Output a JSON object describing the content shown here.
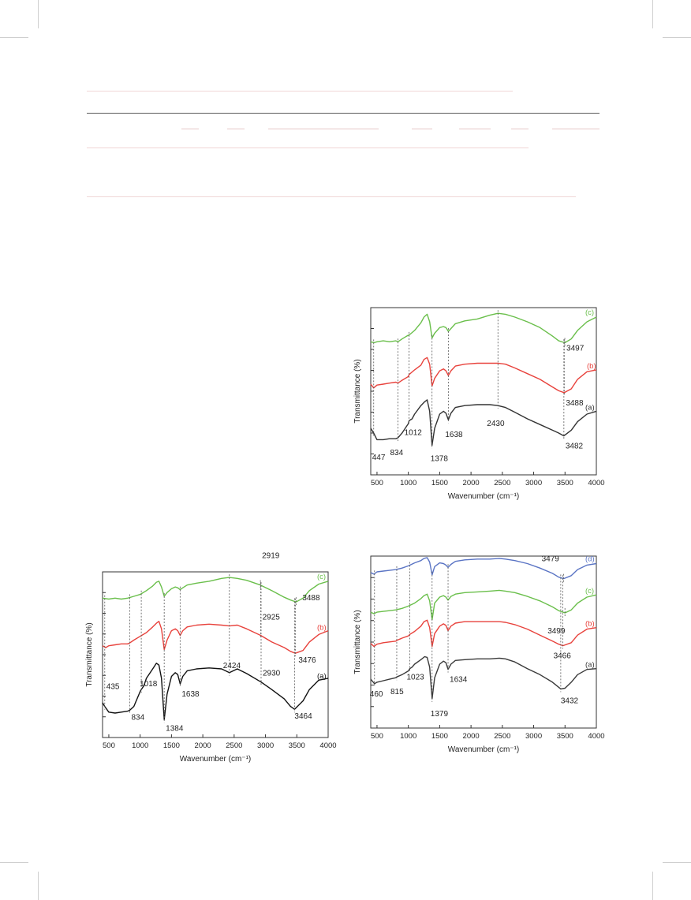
{
  "chart_data": [
    {
      "id": "chart-top-right",
      "type": "line",
      "xlabel": "Wavenumber (cm⁻¹)",
      "ylabel": "Transmittance (%)",
      "xlim": [
        400,
        4000
      ],
      "ylim": [
        0,
        100
      ],
      "xticks": [
        500,
        1000,
        1500,
        2000,
        2500,
        3000,
        3500,
        4000
      ],
      "grid": false,
      "series": [
        {
          "name": "(c)",
          "color": "#6abf4b",
          "x": [
            400,
            450,
            500,
            600,
            700,
            800,
            834,
            900,
            1000,
            1012,
            1100,
            1200,
            1250,
            1300,
            1340,
            1378,
            1420,
            1500,
            1560,
            1600,
            1638,
            1680,
            1750,
            1900,
            2100,
            2300,
            2430,
            2550,
            2700,
            2900,
            3100,
            3300,
            3400,
            3497,
            3600,
            3700,
            3850,
            4000
          ],
          "y": [
            64,
            63,
            64,
            65,
            64,
            65,
            64,
            67,
            71,
            71,
            76,
            84,
            90,
            93,
            85,
            68,
            73,
            79,
            80,
            79,
            75,
            78,
            83,
            86,
            88,
            92,
            94,
            93,
            90,
            85,
            79,
            70,
            65,
            63,
            67,
            76,
            85,
            90
          ]
        },
        {
          "name": "(b)",
          "color": "#e8423c",
          "x": [
            400,
            447,
            500,
            600,
            700,
            800,
            834,
            900,
            1000,
            1012,
            1100,
            1200,
            1250,
            1300,
            1340,
            1378,
            1420,
            1500,
            1560,
            1600,
            1638,
            1680,
            1750,
            1900,
            2100,
            2300,
            2430,
            2550,
            2700,
            2900,
            3100,
            3300,
            3400,
            3488,
            3600,
            3700,
            3850,
            4000
          ],
          "y": [
            52,
            48,
            51,
            52,
            53,
            54,
            53,
            56,
            60,
            62,
            67,
            72,
            78,
            80,
            73,
            50,
            58,
            66,
            68,
            66,
            61,
            66,
            71,
            73,
            74,
            74,
            74,
            73,
            69,
            63,
            57,
            49,
            45,
            43,
            47,
            57,
            65,
            67
          ]
        },
        {
          "name": "(a)",
          "color": "#333333",
          "x": [
            400,
            447,
            500,
            600,
            700,
            800,
            834,
            900,
            950,
            1000,
            1012,
            1060,
            1100,
            1200,
            1260,
            1300,
            1340,
            1378,
            1420,
            1500,
            1560,
            1600,
            1638,
            1680,
            1750,
            1900,
            2100,
            2300,
            2430,
            2550,
            2700,
            2900,
            3100,
            3300,
            3400,
            3482,
            3600,
            3700,
            3850,
            4000
          ],
          "y": [
            38,
            33,
            26,
            26,
            27,
            27,
            28,
            33,
            38,
            43,
            46,
            48,
            53,
            62,
            66,
            68,
            56,
            20,
            38,
            53,
            56,
            54,
            47,
            54,
            60,
            62,
            63,
            63,
            62,
            60,
            55,
            48,
            42,
            36,
            33,
            30,
            36,
            45,
            53,
            56
          ]
        }
      ],
      "annotations": [
        "447",
        "834",
        "1012",
        "1378",
        "1638",
        "2430",
        "3482",
        "3488",
        "3497"
      ]
    },
    {
      "id": "chart-bottom-left",
      "type": "line",
      "xlabel": "Wavenumber (cm⁻¹)",
      "ylabel": "Transmittance (%)",
      "xlim": [
        400,
        4000
      ],
      "ylim": [
        0,
        100
      ],
      "xticks": [
        500,
        1000,
        1500,
        2000,
        2500,
        3000,
        3500,
        4000
      ],
      "grid": false,
      "series": [
        {
          "name": "(c)",
          "color": "#6abf4b",
          "x": [
            400,
            500,
            600,
            700,
            800,
            900,
            1000,
            1100,
            1200,
            1260,
            1300,
            1340,
            1384,
            1430,
            1500,
            1560,
            1600,
            1638,
            1680,
            1750,
            1900,
            2100,
            2300,
            2424,
            2550,
            2700,
            2919,
            3100,
            3300,
            3400,
            3488,
            3600,
            3700,
            3850,
            4000
          ],
          "y": [
            72,
            71,
            72,
            71,
            72,
            74,
            76,
            80,
            85,
            89,
            90,
            84,
            74,
            78,
            82,
            84,
            83,
            81,
            83,
            86,
            88,
            90,
            93,
            94,
            93,
            91,
            86,
            80,
            73,
            70,
            68,
            72,
            80,
            87,
            90
          ]
        },
        {
          "name": "(b)",
          "color": "#e8423c",
          "x": [
            400,
            450,
            500,
            600,
            700,
            800,
            834,
            900,
            1000,
            1100,
            1200,
            1260,
            1300,
            1340,
            1384,
            1430,
            1500,
            1560,
            1600,
            1638,
            1680,
            1750,
            1900,
            2100,
            2300,
            2424,
            2550,
            2700,
            2925,
            3100,
            3300,
            3400,
            3476,
            3600,
            3700,
            3850,
            4000
          ],
          "y": [
            54,
            52,
            54,
            55,
            56,
            56,
            57,
            60,
            64,
            68,
            74,
            78,
            80,
            72,
            50,
            60,
            70,
            72,
            70,
            65,
            70,
            74,
            76,
            77,
            76,
            75,
            76,
            72,
            65,
            58,
            52,
            48,
            46,
            49,
            58,
            66,
            70
          ]
        },
        {
          "name": "(a)",
          "color": "#111111",
          "x": [
            400,
            435,
            500,
            600,
            700,
            800,
            834,
            900,
            950,
            1000,
            1018,
            1060,
            1100,
            1200,
            1260,
            1300,
            1340,
            1384,
            1430,
            1500,
            1560,
            1600,
            1638,
            1680,
            1750,
            1900,
            2100,
            2300,
            2424,
            2550,
            2700,
            2930,
            3100,
            3300,
            3400,
            3464,
            3600,
            3700,
            3850,
            4000
          ],
          "y": [
            26,
            22,
            16,
            15,
            16,
            17,
            18,
            22,
            30,
            38,
            40,
            44,
            52,
            62,
            68,
            66,
            52,
            8,
            35,
            54,
            58,
            56,
            46,
            54,
            60,
            62,
            63,
            62,
            58,
            62,
            57,
            48,
            40,
            30,
            22,
            19,
            28,
            40,
            50,
            52
          ]
        }
      ],
      "annotations": [
        "435",
        "834",
        "1018",
        "1384",
        "1638",
        "2424",
        "2919",
        "2925",
        "2930",
        "3464",
        "3476",
        "3488"
      ]
    },
    {
      "id": "chart-bottom-right",
      "type": "line",
      "xlabel": "Wavenumber (cm⁻¹)",
      "ylabel": "Transmittance (%)",
      "xlim": [
        400,
        4000
      ],
      "ylim": [
        0,
        100
      ],
      "xticks": [
        500,
        1000,
        1500,
        2000,
        2500,
        3000,
        3500,
        4000
      ],
      "grid": false,
      "series": [
        {
          "name": "(d)",
          "color": "#5a74c4",
          "x": [
            400,
            450,
            500,
            600,
            700,
            800,
            900,
            1000,
            1100,
            1200,
            1250,
            1300,
            1340,
            1379,
            1420,
            1500,
            1560,
            1600,
            1634,
            1680,
            1750,
            1900,
            2100,
            2300,
            2450,
            2550,
            2700,
            2900,
            3100,
            3300,
            3400,
            3479,
            3600,
            3700,
            3850,
            4000
          ],
          "y": [
            78,
            76,
            79,
            80,
            81,
            82,
            84,
            87,
            91,
            94,
            97,
            98,
            92,
            75,
            86,
            91,
            90,
            88,
            85,
            89,
            93,
            95,
            96,
            96,
            97,
            96,
            94,
            90,
            84,
            77,
            72,
            70,
            74,
            82,
            88,
            90
          ]
        },
        {
          "name": "(c)",
          "color": "#6abf4b",
          "x": [
            400,
            450,
            500,
            600,
            700,
            800,
            900,
            1000,
            1023,
            1100,
            1200,
            1250,
            1300,
            1340,
            1379,
            1420,
            1500,
            1560,
            1600,
            1634,
            1680,
            1750,
            1900,
            2100,
            2300,
            2450,
            2550,
            2700,
            2900,
            3100,
            3300,
            3400,
            3499,
            3600,
            3700,
            3850,
            4000
          ],
          "y": [
            58,
            56,
            58,
            59,
            60,
            61,
            63,
            66,
            67,
            70,
            76,
            80,
            82,
            73,
            48,
            70,
            78,
            80,
            78,
            74,
            79,
            82,
            84,
            85,
            86,
            87,
            86,
            84,
            79,
            73,
            65,
            60,
            57,
            61,
            70,
            78,
            81
          ]
        },
        {
          "name": "(b)",
          "color": "#e8423c",
          "x": [
            400,
            450,
            500,
            600,
            700,
            800,
            815,
            900,
            1000,
            1023,
            1100,
            1200,
            1250,
            1300,
            1340,
            1379,
            1420,
            1500,
            1560,
            1600,
            1634,
            1680,
            1750,
            1900,
            2100,
            2300,
            2450,
            2550,
            2700,
            2900,
            3100,
            3300,
            3400,
            3466,
            3600,
            3700,
            3850,
            4000
          ],
          "y": [
            49,
            45,
            48,
            50,
            51,
            52,
            53,
            56,
            59,
            61,
            65,
            72,
            78,
            80,
            70,
            45,
            62,
            72,
            75,
            73,
            66,
            72,
            76,
            78,
            78,
            78,
            78,
            77,
            74,
            68,
            60,
            52,
            48,
            46,
            50,
            60,
            68,
            70
          ]
        },
        {
          "name": "(a)",
          "color": "#3a3a3a",
          "x": [
            400,
            460,
            500,
            600,
            700,
            800,
            815,
            900,
            1000,
            1023,
            1060,
            1100,
            1200,
            1260,
            1300,
            1340,
            1379,
            1420,
            1500,
            1560,
            1600,
            1634,
            1680,
            1750,
            1900,
            2100,
            2300,
            2450,
            2550,
            2700,
            2900,
            3100,
            3300,
            3432,
            3500,
            3600,
            3700,
            3850,
            4000
          ],
          "y": [
            34,
            28,
            30,
            32,
            34,
            36,
            37,
            40,
            45,
            48,
            50,
            54,
            60,
            64,
            63,
            50,
            8,
            36,
            54,
            58,
            56,
            47,
            54,
            59,
            60,
            61,
            61,
            62,
            61,
            57,
            48,
            40,
            30,
            21,
            22,
            30,
            40,
            47,
            48
          ]
        }
      ],
      "annotations": [
        "460",
        "815",
        "1023",
        "1379",
        "1634",
        "3432",
        "3466",
        "3479",
        "3499"
      ]
    }
  ]
}
